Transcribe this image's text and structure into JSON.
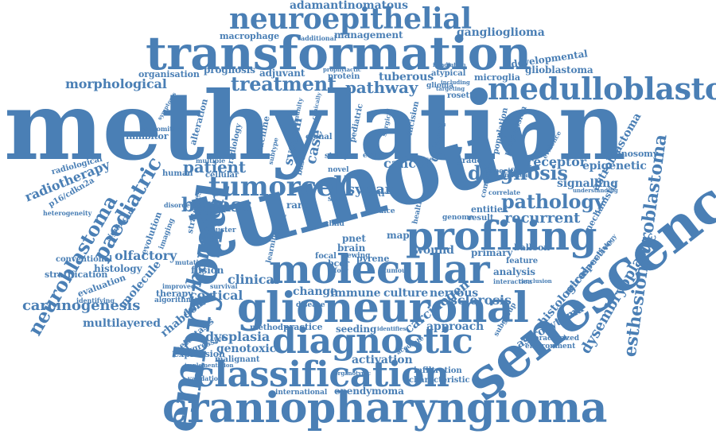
{
  "word_color": "#4a7fb5",
  "background": "#ffffff",
  "words": [
    {
      "text": "methylation"
    },
    {
      "text": "tumour"
    },
    {
      "text": "transformation"
    },
    {
      "text": "craniopharyngioma"
    },
    {
      "text": "senescence"
    },
    {
      "text": "glioneuronal"
    },
    {
      "text": "molecular"
    },
    {
      "text": "classification"
    },
    {
      "text": "embryonal"
    },
    {
      "text": "profiling"
    },
    {
      "text": "diagnostic"
    },
    {
      "text": "medulloblastoma"
    },
    {
      "text": "neuroepithelial"
    },
    {
      "text": "esthesioneuroblastoma"
    },
    {
      "text": "tumorcell"
    },
    {
      "text": "diagnosis"
    },
    {
      "text": "paediatric"
    },
    {
      "text": "neuroblastoma"
    },
    {
      "text": "hamster"
    },
    {
      "text": "pathology"
    },
    {
      "text": "bypass"
    },
    {
      "text": "patient"
    },
    {
      "text": "treatment"
    },
    {
      "text": "pathway"
    },
    {
      "text": "carcinogenesis"
    },
    {
      "text": "radiotherapy"
    },
    {
      "text": "dysembryoplastic"
    },
    {
      "text": "adamantinomatous"
    },
    {
      "text": "ganglioglioma"
    },
    {
      "text": "morphological"
    },
    {
      "text": "recurrent"
    },
    {
      "text": "receptor"
    },
    {
      "text": "epigenetic"
    },
    {
      "text": "signalling"
    },
    {
      "text": "cancer"
    },
    {
      "text": "syrian"
    },
    {
      "text": "dysplasia"
    },
    {
      "text": "ependymoma"
    },
    {
      "text": "astroblastoma"
    },
    {
      "text": "carcinogen"
    },
    {
      "text": "sclerosis"
    },
    {
      "text": "cortical"
    },
    {
      "text": "olfactory"
    },
    {
      "text": "clinical"
    },
    {
      "text": "immune"
    },
    {
      "text": "culture"
    },
    {
      "text": "nervous"
    },
    {
      "text": "change"
    },
    {
      "text": "activation"
    },
    {
      "text": "genotoxic"
    },
    {
      "text": "multilayered"
    },
    {
      "text": "rhabdoid"
    },
    {
      "text": "approach"
    },
    {
      "text": "astrocytoma"
    },
    {
      "text": "histological"
    },
    {
      "text": "retrospective"
    },
    {
      "text": "developmental"
    },
    {
      "text": "glioblastoma"
    },
    {
      "text": "microglia"
    },
    {
      "text": "prognosis"
    },
    {
      "text": "adjuvant"
    },
    {
      "text": "tuberous"
    },
    {
      "text": "organisation"
    },
    {
      "text": "macrophage"
    },
    {
      "text": "management"
    },
    {
      "text": "cohort"
    },
    {
      "text": "wound"
    },
    {
      "text": "primary"
    },
    {
      "text": "mapk"
    },
    {
      "text": "brain"
    },
    {
      "text": "pnet"
    },
    {
      "text": "pyrene"
    },
    {
      "text": "case"
    },
    {
      "text": "system"
    },
    {
      "text": "inhibitor"
    },
    {
      "text": "alteration"
    },
    {
      "text": "radiological"
    },
    {
      "text": "p16/cdkn2a"
    },
    {
      "text": "histology"
    },
    {
      "text": "stratification"
    },
    {
      "text": "evaluation"
    },
    {
      "text": "molecule"
    },
    {
      "text": "evolution"
    },
    {
      "text": "conventional"
    },
    {
      "text": "metastasis"
    },
    {
      "text": "expression"
    },
    {
      "text": "malignant"
    },
    {
      "text": "international"
    },
    {
      "text": "infiltration"
    },
    {
      "text": "characteristic"
    },
    {
      "text": "seeding"
    },
    {
      "text": "practice"
    },
    {
      "text": "method"
    },
    {
      "text": "aggressive"
    },
    {
      "text": "fusion"
    },
    {
      "text": "therapy"
    },
    {
      "text": "algorithm"
    },
    {
      "text": "central"
    },
    {
      "text": "monosomy"
    },
    {
      "text": "mechanistic"
    },
    {
      "text": "analysis"
    },
    {
      "text": "balloon"
    },
    {
      "text": "feature"
    },
    {
      "text": "entities"
    },
    {
      "text": "result"
    },
    {
      "text": "rare"
    },
    {
      "text": "cellular"
    },
    {
      "text": "human"
    },
    {
      "text": "study"
    },
    {
      "text": "grade"
    },
    {
      "text": "population"
    },
    {
      "text": "progression"
    },
    {
      "text": "machine"
    },
    {
      "text": "radiology"
    },
    {
      "text": "atypical"
    },
    {
      "text": "pediatric"
    },
    {
      "text": "incision"
    },
    {
      "text": "clonal"
    },
    {
      "text": "rosette"
    },
    {
      "text": "protein"
    },
    {
      "text": "based"
    },
    {
      "text": "strategies"
    },
    {
      "text": "learning"
    },
    {
      "text": "characterized"
    },
    {
      "text": "environment"
    },
    {
      "text": "cluster"
    },
    {
      "text": "bcor"
    },
    {
      "text": "additional"
    },
    {
      "text": "concomitant"
    },
    {
      "text": "etmr"
    },
    {
      "text": "glioma"
    },
    {
      "text": "mutation"
    },
    {
      "text": "child"
    },
    {
      "text": "target"
    },
    {
      "text": "focal"
    },
    {
      "text": "ewing"
    },
    {
      "text": "site"
    },
    {
      "text": "novel"
    },
    {
      "text": "disease"
    },
    {
      "text": "validation"
    },
    {
      "text": "imaging"
    },
    {
      "text": "significant"
    },
    {
      "text": "heterogeneity"
    },
    {
      "text": "identifying"
    },
    {
      "text": "improved"
    },
    {
      "text": "survival"
    },
    {
      "text": "interaction"
    },
    {
      "text": "diffuse"
    },
    {
      "text": "immunity"
    },
    {
      "text": "sstr"
    },
    {
      "text": "specific"
    },
    {
      "text": "genome"
    },
    {
      "text": "correlate"
    },
    {
      "text": "health"
    },
    {
      "text": "comprise"
    },
    {
      "text": "nuclear"
    },
    {
      "text": "neuropathology"
    },
    {
      "text": "subgroup"
    },
    {
      "text": "disorder"
    },
    {
      "text": "dice"
    },
    {
      "text": "foxr"
    },
    {
      "text": "tumou"
    },
    {
      "text": "understanding"
    },
    {
      "text": "multiple"
    },
    {
      "text": "implementation"
    },
    {
      "text": "accurate"
    },
    {
      "text": "organotypic"
    },
    {
      "text": "evidence"
    },
    {
      "text": "surgical"
    },
    {
      "text": "symptoms"
    },
    {
      "text": "irradiation"
    },
    {
      "text": "conclusion"
    },
    {
      "text": "identifies"
    },
    {
      "text": "including"
    },
    {
      "text": "targeting"
    },
    {
      "text": "prophylactic"
    },
    {
      "text": "subtype"
    },
    {
      "text": "clinically"
    }
  ]
}
